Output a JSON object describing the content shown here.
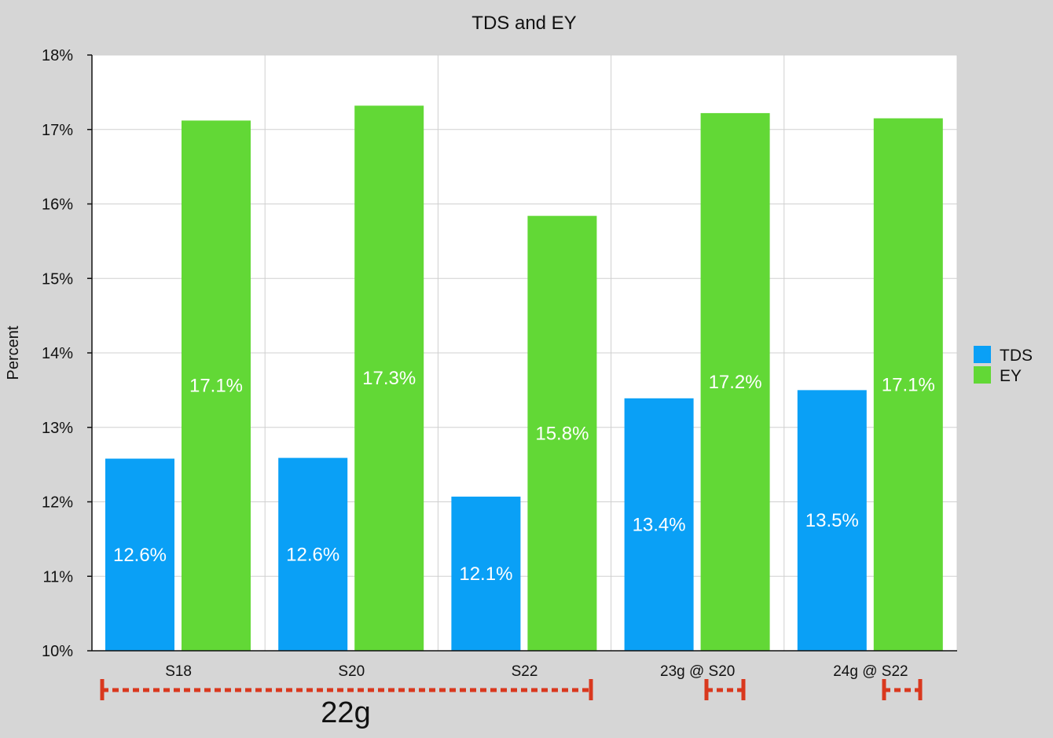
{
  "colors": {
    "tds": "#0aa0f6",
    "ey": "#62d836",
    "plot_bg": "#ffffff",
    "page_bg": "#d6d6d6",
    "grid": "#d0d0d0",
    "marker": "#d9381e"
  },
  "chart_data": {
    "type": "bar",
    "title": "TDS and EY",
    "ylabel": "Percent",
    "xlabel": "",
    "ylim": [
      10,
      18
    ],
    "yticks": [
      10,
      11,
      12,
      13,
      14,
      15,
      16,
      17,
      18
    ],
    "ytick_labels": [
      "10%",
      "11%",
      "12%",
      "13%",
      "14%",
      "15%",
      "16%",
      "17%",
      "18%"
    ],
    "categories": [
      "S18",
      "S20",
      "S22",
      "23g @ S20",
      "24g @ S22"
    ],
    "series": [
      {
        "name": "TDS",
        "color_key": "tds",
        "values": [
          12.58,
          12.59,
          12.07,
          13.39,
          13.5
        ],
        "labels": [
          "12.6%",
          "12.6%",
          "12.1%",
          "13.4%",
          "13.5%"
        ]
      },
      {
        "name": "EY",
        "color_key": "ey",
        "values": [
          17.12,
          17.32,
          15.84,
          17.22,
          17.15
        ],
        "labels": [
          "17.1%",
          "17.3%",
          "15.8%",
          "17.2%",
          "17.1%"
        ]
      }
    ],
    "legend": [
      "TDS",
      "EY"
    ],
    "legend_position": "right",
    "grid": true,
    "annotations": {
      "dose_group_label": "22g"
    }
  }
}
